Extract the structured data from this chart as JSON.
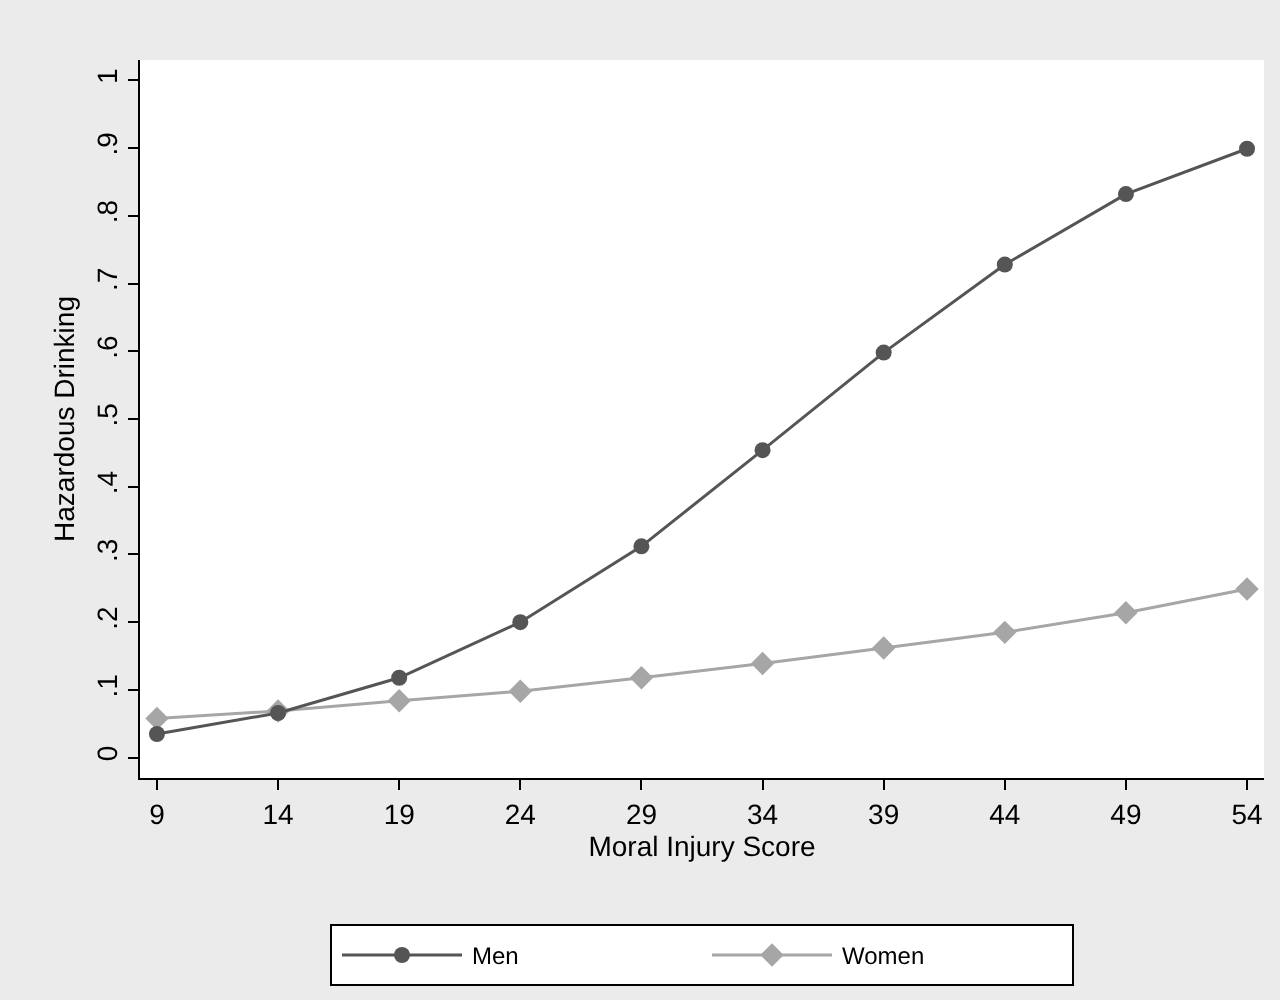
{
  "chart_data": {
    "type": "line",
    "xlabel": "Moral Injury Score",
    "ylabel": "Hazardous Drinking",
    "x": [
      9,
      14,
      19,
      24,
      29,
      34,
      39,
      44,
      49,
      54
    ],
    "series": [
      {
        "name": "Men",
        "color": "#555555",
        "marker": "circle",
        "values": [
          0.035,
          0.066,
          0.118,
          0.2,
          0.312,
          0.454,
          0.598,
          0.728,
          0.832,
          0.899
        ]
      },
      {
        "name": "Women",
        "color": "#a6a6a6",
        "marker": "diamond",
        "values": [
          0.058,
          0.069,
          0.084,
          0.098,
          0.118,
          0.139,
          0.162,
          0.185,
          0.214,
          0.249
        ]
      }
    ],
    "xlim": [
      8.3,
      54.7
    ],
    "xticks": [
      9,
      14,
      19,
      24,
      29,
      34,
      39,
      44,
      49,
      54
    ],
    "ylim": [
      -0.03,
      1.03
    ],
    "yticks": [
      0,
      {
        "value": 0.1,
        "label": ".1"
      },
      {
        "value": 0.2,
        "label": ".2"
      },
      {
        "value": 0.3,
        "label": ".3"
      },
      {
        "value": 0.4,
        "label": ".4"
      },
      {
        "value": 0.5,
        "label": ".5"
      },
      {
        "value": 0.6,
        "label": ".6"
      },
      {
        "value": 0.7,
        "label": ".7"
      },
      {
        "value": 0.8,
        "label": ".8"
      },
      {
        "value": 0.9,
        "label": ".9"
      },
      1
    ],
    "legend": "bottom",
    "line_style": "solid"
  }
}
